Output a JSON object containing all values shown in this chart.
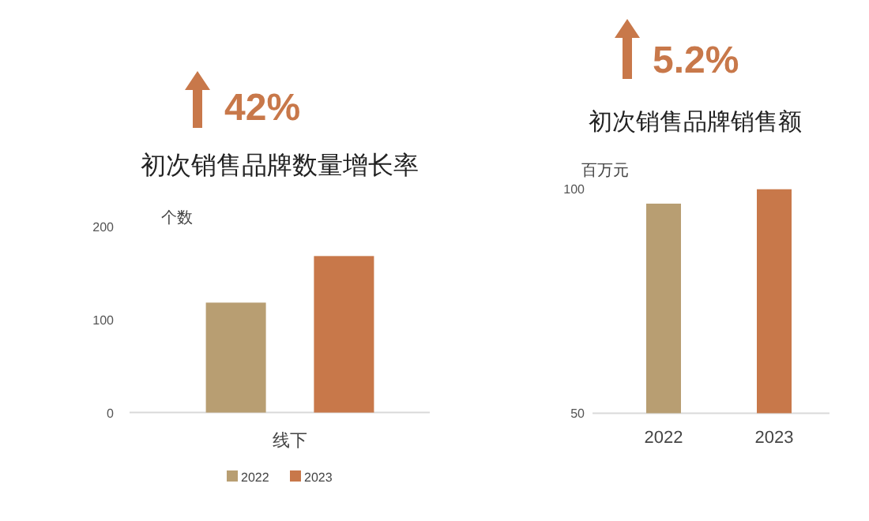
{
  "chart_data": [
    {
      "type": "bar",
      "title": "初次销售品牌数量增长率",
      "ylabel": "个数",
      "annotations": [
        "42%"
      ],
      "categories": [
        "线下"
      ],
      "ylim": [
        0,
        200
      ],
      "yticks": [
        0,
        100,
        200
      ],
      "legend": "bottom",
      "series": [
        {
          "name": "2022",
          "color": "#b89e72",
          "values": [
            118
          ]
        },
        {
          "name": "2023",
          "color": "#c8784a",
          "values": [
            168
          ]
        }
      ]
    },
    {
      "type": "bar",
      "title": "初次销售品牌销售额",
      "ylabel": "百万元",
      "annotations": [
        "5.2%"
      ],
      "categories": [
        "2022",
        "2023"
      ],
      "ylim": [
        50,
        100
      ],
      "yticks": [
        50,
        100
      ],
      "values": [
        96.6,
        99.8
      ],
      "colors": [
        "#b89e72",
        "#c8784a"
      ]
    }
  ]
}
